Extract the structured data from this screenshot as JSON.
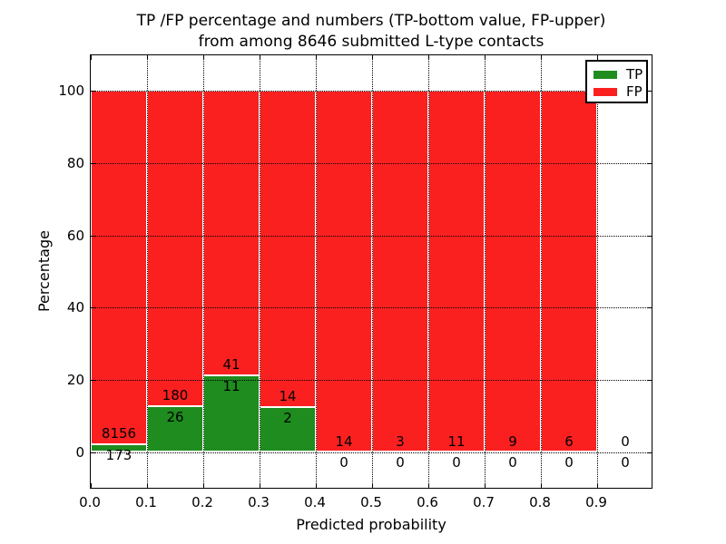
{
  "chart_data": {
    "type": "bar",
    "stacked": true,
    "title": "TP /FP percentage and numbers (TP-bottom value, FP-upper) from among 8646 submitted L-type contacts",
    "title_line1": "TP /FP percentage and numbers (TP-bottom value, FP-upper)",
    "title_line2": "from among 8646 submitted L-type contacts",
    "xlabel": "Predicted probability",
    "ylabel": "Percentage",
    "x_tick_labels": [
      "0.0",
      "0.1",
      "0.2",
      "0.3",
      "0.4",
      "0.5",
      "0.6",
      "0.7",
      "0.8",
      "0.9"
    ],
    "y_ticks": [
      0,
      20,
      40,
      60,
      80,
      100
    ],
    "xlim": [
      0.0,
      1.0
    ],
    "ylim": [
      -10.5,
      110.5
    ],
    "bin_width": 0.1,
    "bin_starts": [
      0.0,
      0.1,
      0.2,
      0.3,
      0.4,
      0.5,
      0.6,
      0.7,
      0.8,
      0.9
    ],
    "total_submitted": 8646,
    "series": [
      {
        "name": "TP",
        "color": "#1e8c1e",
        "counts": [
          173,
          26,
          11,
          2,
          0,
          0,
          0,
          0,
          0,
          0
        ]
      },
      {
        "name": "FP",
        "color": "#fb2020",
        "counts": [
          8156,
          180,
          41,
          14,
          14,
          3,
          11,
          9,
          6,
          0
        ]
      }
    ],
    "tp_percent_of_bin": [
      2.08,
      12.62,
      21.15,
      12.5,
      0,
      0,
      0,
      0,
      0,
      0
    ],
    "grid": "dotted",
    "legend": {
      "position": "upper right",
      "entries": [
        {
          "label": "TP",
          "color": "#1e8c1e"
        },
        {
          "label": "FP",
          "color": "#fb2020"
        }
      ]
    }
  }
}
